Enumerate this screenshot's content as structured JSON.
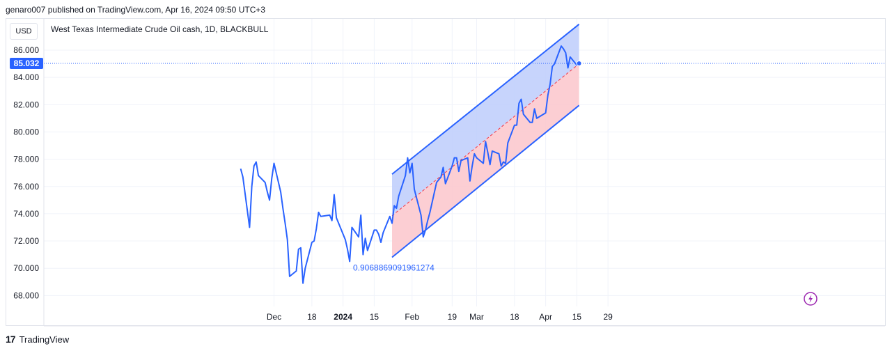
{
  "header": {
    "publisher": "genaro007 published on TradingView.com, Apr 16, 2024 09:50 UTC+3"
  },
  "toolbar": {
    "currency": "USD",
    "symbol_title": "West Texas Intermediate Crude Oil cash, 1D, BLACKBULL"
  },
  "footer": {
    "brand": "TradingView",
    "logo_glyph": "17"
  },
  "colors": {
    "line": "#2962ff",
    "upper_fill": "#bdcdfc",
    "lower_fill": "#fcc5cb",
    "channel_line": "#2962ff",
    "midline": "#f23645",
    "grid": "#f0f3fa",
    "price_badge": "#2962ff",
    "flash_icon": "#9c27b0"
  },
  "chart_data": {
    "type": "line",
    "title": "West Texas Intermediate Crude Oil cash, 1D, BLACKBULL",
    "x_tick_labels": [
      "Dec",
      "18",
      "2024",
      "15",
      "Feb",
      "19",
      "Mar",
      "18",
      "Apr",
      "15",
      "29"
    ],
    "y_tick_labels": [
      "68.000",
      "70.000",
      "72.000",
      "74.000",
      "76.000",
      "78.000",
      "80.000",
      "82.000",
      "84.000",
      "86.000"
    ],
    "ylim": [
      67.2,
      88.3
    ],
    "grid": true,
    "last_price": "85.032",
    "channel_label": "0.9068869091961274",
    "channel": {
      "start_date": "2024-01-23",
      "end_date": "2024-04-16",
      "upper_start": 76.9,
      "upper_end": 87.9,
      "mid_start": 73.85,
      "mid_end": 85.0,
      "lower_start": 70.8,
      "lower_end": 81.95
    },
    "series": [
      {
        "x": [
          "2023-11-16",
          "2023-11-17",
          "2023-11-20",
          "2023-11-21",
          "2023-11-22",
          "2023-11-23",
          "2023-11-24",
          "2023-11-27",
          "2023-11-28",
          "2023-11-29",
          "2023-11-30",
          "2023-12-01",
          "2023-12-04",
          "2023-12-05",
          "2023-12-06",
          "2023-12-07",
          "2023-12-08",
          "2023-12-11",
          "2023-12-12",
          "2023-12-13",
          "2023-12-14",
          "2023-12-15",
          "2023-12-18",
          "2023-12-19",
          "2023-12-20",
          "2023-12-21",
          "2023-12-22",
          "2023-12-26",
          "2023-12-27",
          "2023-12-28",
          "2023-12-29",
          "2024-01-02",
          "2024-01-03",
          "2024-01-04",
          "2024-01-05",
          "2024-01-08",
          "2024-01-09",
          "2024-01-10",
          "2024-01-11",
          "2024-01-12",
          "2024-01-15",
          "2024-01-16",
          "2024-01-17",
          "2024-01-18",
          "2024-01-19",
          "2024-01-22",
          "2024-01-23",
          "2024-01-24",
          "2024-01-25",
          "2024-01-26",
          "2024-01-29",
          "2024-01-30",
          "2024-01-31",
          "2024-02-01",
          "2024-02-02",
          "2024-02-05",
          "2024-02-06",
          "2024-02-07",
          "2024-02-08",
          "2024-02-09",
          "2024-02-12",
          "2024-02-13",
          "2024-02-14",
          "2024-02-15",
          "2024-02-16",
          "2024-02-19",
          "2024-02-20",
          "2024-02-21",
          "2024-02-22",
          "2024-02-23",
          "2024-02-26",
          "2024-02-27",
          "2024-02-28",
          "2024-02-29",
          "2024-03-01",
          "2024-03-04",
          "2024-03-05",
          "2024-03-06",
          "2024-03-07",
          "2024-03-08",
          "2024-03-11",
          "2024-03-12",
          "2024-03-13",
          "2024-03-14",
          "2024-03-15",
          "2024-03-18",
          "2024-03-19",
          "2024-03-20",
          "2024-03-21",
          "2024-03-22",
          "2024-03-25",
          "2024-03-26",
          "2024-03-27",
          "2024-03-28",
          "2024-04-01",
          "2024-04-02",
          "2024-04-03",
          "2024-04-04",
          "2024-04-05",
          "2024-04-08",
          "2024-04-09",
          "2024-04-10",
          "2024-04-11",
          "2024-04-12",
          "2024-04-15",
          "2024-04-16"
        ],
        "values": [
          77.3,
          76.7,
          73.0,
          76.0,
          77.5,
          77.8,
          76.8,
          76.3,
          75.6,
          75.0,
          76.6,
          77.7,
          75.6,
          74.4,
          73.3,
          72.1,
          69.4,
          69.8,
          71.4,
          71.5,
          68.9,
          70.0,
          71.9,
          72.0,
          72.9,
          74.1,
          73.8,
          73.9,
          73.5,
          75.4,
          73.7,
          72.1,
          71.4,
          70.5,
          73.0,
          72.3,
          73.9,
          71.0,
          72.2,
          71.3,
          72.8,
          72.8,
          72.5,
          71.9,
          72.6,
          73.8,
          73.3,
          74.6,
          74.4,
          75.3,
          76.8,
          78.1,
          77.0,
          77.7,
          75.8,
          73.9,
          72.3,
          72.8,
          73.5,
          74.1,
          76.3,
          76.5,
          76.7,
          77.4,
          76.2,
          77.5,
          78.1,
          78.1,
          77.1,
          77.9,
          78.1,
          76.4,
          77.5,
          78.4,
          78.1,
          77.7,
          79.3,
          78.5,
          77.6,
          78.6,
          78.4,
          77.5,
          77.8,
          77.7,
          79.2,
          80.5,
          80.5,
          82.1,
          82.4,
          81.3,
          80.7,
          80.7,
          81.7,
          81.0,
          81.4,
          82.7,
          83.5,
          84.8,
          85.0,
          86.3,
          86.1,
          85.8,
          84.7,
          85.5,
          84.9,
          85.0
        ]
      }
    ]
  }
}
